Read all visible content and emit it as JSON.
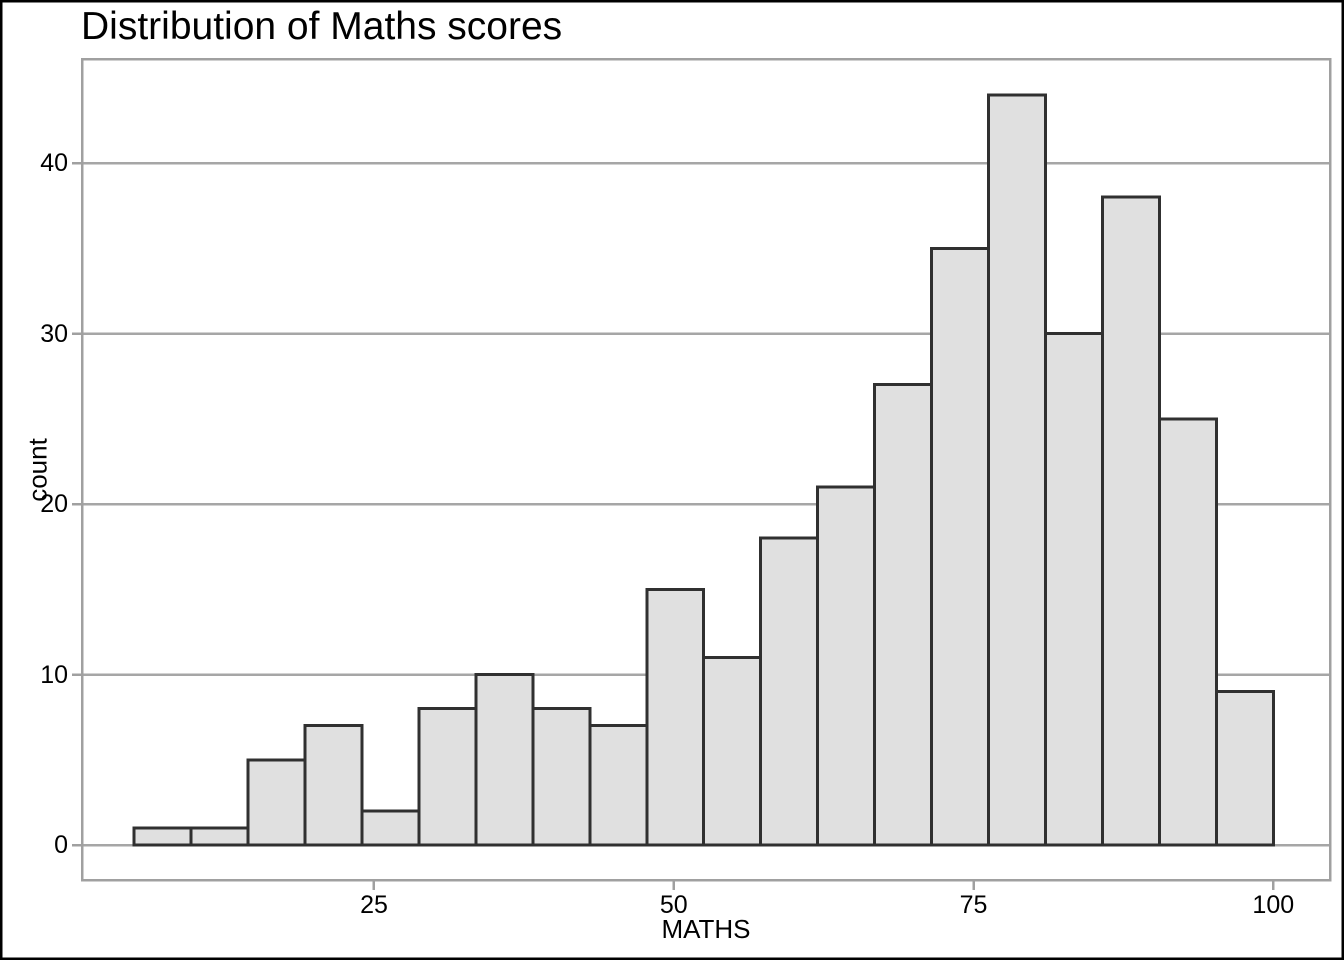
{
  "chart_data": {
    "type": "bar",
    "subtype": "histogram",
    "title": "Distribution of Maths scores",
    "xlabel": "MATHS",
    "ylabel": "count",
    "bin_edges": [
      5,
      9.75,
      14.5,
      19.25,
      24,
      28.75,
      33.5,
      38.25,
      43,
      47.75,
      52.5,
      57.25,
      62,
      66.75,
      71.5,
      76.25,
      81,
      85.75,
      90.5,
      95.25,
      100
    ],
    "counts": [
      1,
      1,
      5,
      7,
      2,
      8,
      10,
      8,
      7,
      15,
      11,
      18,
      21,
      27,
      35,
      44,
      30,
      38,
      25,
      9
    ],
    "x_ticks": [
      25,
      50,
      75,
      100
    ],
    "y_ticks": [
      0,
      10,
      20,
      30,
      40
    ],
    "xlim": [
      0.65,
      104.73
    ],
    "ylim": [
      -2.05,
      46.1
    ],
    "grid": "horizontal-major",
    "legend": "none",
    "colors": {
      "bar_fill": "#e0e0e0",
      "bar_stroke": "#303030",
      "grid_line": "#a6a6a6",
      "panel_border": "#a0a0a0",
      "axis_tick": "#a0a0a0",
      "text": "#000000",
      "background": "#ffffff",
      "outer_border": "#000000"
    }
  }
}
